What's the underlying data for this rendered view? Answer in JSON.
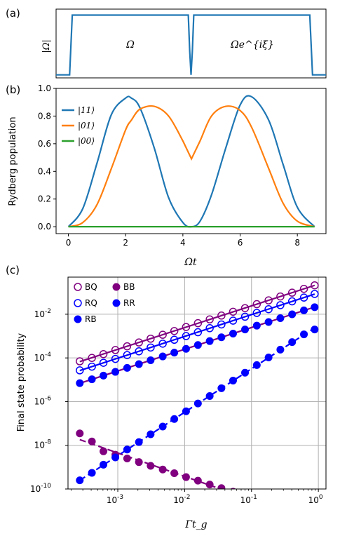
{
  "colors": {
    "blue11": "#1f77b4",
    "orange01": "#ff7f0e",
    "green00": "#2ca02c",
    "purple": "#800080",
    "blue": "#0000ff",
    "grid": "#b0b0b0"
  },
  "panels": {
    "a": {
      "label": "(a)"
    },
    "b": {
      "label": "(b)"
    },
    "c": {
      "label": "(c)"
    }
  },
  "chart_data": [
    {
      "type": "line",
      "panel": "a",
      "ylabel": "|Ω|",
      "annotations": [
        "Ω",
        "Ωe^{iξ}"
      ],
      "x": [
        0.0,
        0.05,
        0.06,
        0.49,
        0.495,
        0.5,
        0.505,
        0.51,
        0.94,
        0.95,
        1.0
      ],
      "y": [
        0.0,
        0.0,
        1.0,
        1.0,
        0.4,
        0.0,
        0.4,
        1.0,
        1.0,
        0.0,
        0.0
      ],
      "xlim": [
        0,
        1
      ],
      "ylim": [
        -0.05,
        1.1
      ]
    },
    {
      "type": "line",
      "panel": "b",
      "xlabel": "Ωt",
      "ylabel": "Rydberg population",
      "xlim": [
        -0.43,
        9.0
      ],
      "ylim": [
        -0.05,
        1.0
      ],
      "xticks": [
        0,
        2,
        4,
        6,
        8
      ],
      "yticks": [
        0.0,
        0.2,
        0.4,
        0.6,
        0.8,
        1.0
      ],
      "x": [
        0.0,
        0.5,
        1.0,
        1.5,
        2.0,
        2.2,
        2.5,
        3.0,
        3.5,
        4.0,
        4.3,
        4.6,
        5.0,
        5.5,
        6.0,
        6.4,
        7.0,
        7.5,
        8.0,
        8.6
      ],
      "series": [
        {
          "name": "|11⟩",
          "values": [
            0.0,
            0.13,
            0.46,
            0.81,
            0.93,
            0.93,
            0.86,
            0.57,
            0.21,
            0.03,
            0.0,
            0.04,
            0.23,
            0.57,
            0.88,
            0.94,
            0.77,
            0.45,
            0.14,
            0.0
          ]
        },
        {
          "name": "|01⟩",
          "values": [
            0.0,
            0.03,
            0.16,
            0.42,
            0.7,
            0.77,
            0.85,
            0.87,
            0.8,
            0.62,
            0.49,
            0.62,
            0.8,
            0.87,
            0.84,
            0.72,
            0.42,
            0.17,
            0.04,
            0.0
          ]
        },
        {
          "name": "|00⟩",
          "values": [
            0.0,
            0.0,
            0.0,
            0.0,
            0.0,
            0.0,
            0.0,
            0.0,
            0.0,
            0.0,
            0.0,
            0.0,
            0.0,
            0.0,
            0.0,
            0.0,
            0.0,
            0.0,
            0.0,
            0.0
          ]
        }
      ],
      "legend": "top-left"
    },
    {
      "type": "scatter",
      "panel": "c",
      "xlabel": "Γt_g",
      "ylabel": "Final state probability",
      "xscale": "log",
      "yscale": "log",
      "xlim": [
        0.00018,
        1.3
      ],
      "ylim": [
        1e-10,
        0.5
      ],
      "xticks": [
        "10^-3",
        "10^-2",
        "10^-1",
        "10^0"
      ],
      "yticks": [
        "10^-10",
        "10^-8",
        "10^-6",
        "10^-4",
        "10^-2"
      ],
      "grid": true,
      "legend": "top-left",
      "x": [
        0.00027,
        0.00041,
        0.00061,
        0.00092,
        0.00138,
        0.00207,
        0.0031,
        0.0047,
        0.007,
        0.0105,
        0.0158,
        0.0237,
        0.0355,
        0.053,
        0.08,
        0.12,
        0.18,
        0.27,
        0.405,
        0.608,
        0.88
      ],
      "series": [
        {
          "name": "BQ",
          "marker": "open-circle",
          "color": "#800080",
          "fit": "solid",
          "values": [
            7e-05,
            0.0001,
            0.00015,
            0.00023,
            0.00034,
            0.00051,
            0.00076,
            0.00115,
            0.0017,
            0.0026,
            0.0039,
            0.0058,
            0.0087,
            0.013,
            0.019,
            0.029,
            0.043,
            0.065,
            0.097,
            0.145,
            0.21
          ]
        },
        {
          "name": "RQ",
          "marker": "open-circle",
          "color": "#0000ff",
          "fit": "solid",
          "values": [
            2.7e-05,
            4e-05,
            6e-05,
            9e-05,
            0.000135,
            0.0002,
            0.0003,
            0.00045,
            0.00068,
            0.001,
            0.0015,
            0.0023,
            0.0034,
            0.0051,
            0.0077,
            0.0115,
            0.017,
            0.026,
            0.039,
            0.058,
            0.085
          ]
        },
        {
          "name": "RB",
          "marker": "half-filled",
          "color": "#0000ff",
          "fit": "solid",
          "values": [
            7e-06,
            1.05e-05,
            1.55e-05,
            2.3e-05,
            3.5e-05,
            5.2e-05,
            7.8e-05,
            0.000117,
            0.000175,
            0.00026,
            0.00039,
            0.00059,
            0.00088,
            0.0013,
            0.002,
            0.003,
            0.0044,
            0.0066,
            0.0099,
            0.015,
            0.021
          ]
        },
        {
          "name": "BB",
          "marker": "filled-circle",
          "color": "#800080",
          "fit": "dashed",
          "values": [
            3.5e-08,
            1.5e-08,
            5.3e-09,
            3.7e-09,
            2.5e-09,
            1.7e-09,
            1.15e-09,
            7.8e-10,
            5.3e-10,
            3.5e-10,
            2.4e-10,
            1.6e-10,
            1.1e-10,
            7.5e-11,
            null,
            null,
            null,
            null,
            null,
            null,
            null
          ]
        },
        {
          "name": "RR",
          "marker": "filled-circle",
          "color": "#0000ff",
          "fit": "dashed",
          "values": [
            2.5e-10,
            5.5e-10,
            1.3e-09,
            2.8e-09,
            6.4e-09,
            1.4e-08,
            3.2e-08,
            7.2e-08,
            1.6e-07,
            3.6e-07,
            8.2e-07,
            1.8e-06,
            4.1e-06,
            9.2e-06,
            2.1e-05,
            4.7e-05,
            0.000105,
            0.00024,
            0.00053,
            0.0012,
            0.002
          ]
        }
      ]
    }
  ]
}
